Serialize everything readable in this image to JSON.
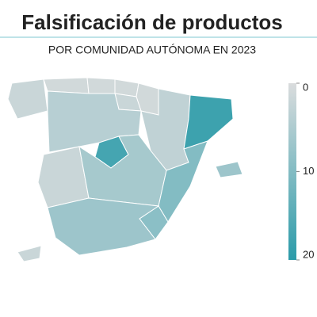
{
  "chart_data": {
    "type": "choropleth",
    "title": "Falsificación de productos",
    "subtitle": "POR COMUNIDAD AUTÓNOMA EN 2023",
    "values": [
      2,
      1,
      1,
      1,
      1,
      2,
      3,
      18,
      4,
      17,
      2,
      6,
      10,
      9,
      7,
      7,
      2
    ],
    "vlim": [
      0,
      20
    ],
    "ticks": [
      0,
      10,
      20
    ],
    "colors": [
      "#dadcdd",
      "#2b9ba9"
    ]
  }
}
